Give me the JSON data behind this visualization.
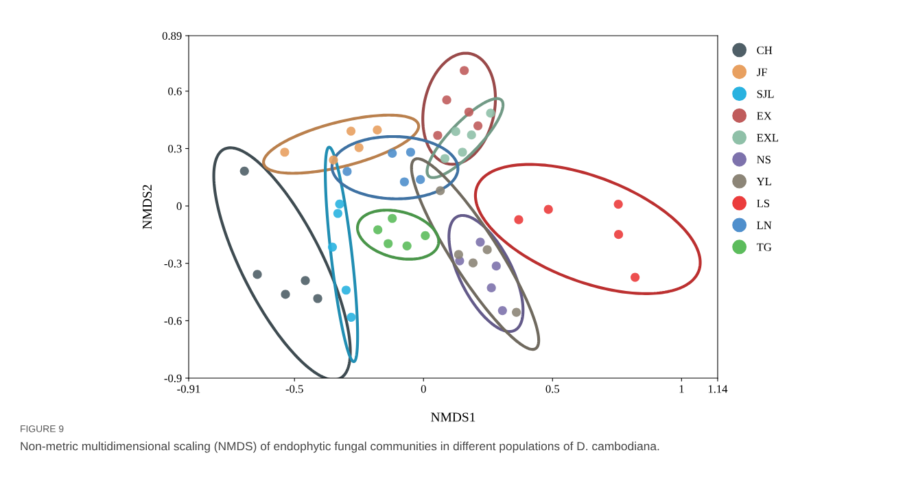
{
  "chart_data": {
    "type": "scatter",
    "xlabel": "NMDS1",
    "ylabel": "NMDS2",
    "xlim": [
      -0.91,
      1.14
    ],
    "ylim": [
      -0.9,
      0.89
    ],
    "xticks": [
      -0.91,
      -0.5,
      0,
      0.5,
      1,
      1.14
    ],
    "yticks": [
      -0.9,
      -0.6,
      -0.3,
      0,
      0.3,
      0.6,
      0.89
    ],
    "grid": false,
    "legend": "right",
    "marker": "circle",
    "series": [
      {
        "name": "CH",
        "color": "#4f5f67",
        "x": [
          -0.694,
          -0.644,
          -0.535,
          -0.458,
          -0.41
        ],
        "values": [
          0.182,
          -0.358,
          -0.462,
          -0.39,
          -0.484
        ]
      },
      {
        "name": "JF",
        "color": "#e8a060",
        "x": [
          -0.538,
          -0.349,
          -0.281,
          -0.25,
          -0.179
        ],
        "values": [
          0.281,
          0.24,
          0.391,
          0.305,
          0.397
        ]
      },
      {
        "name": "SJL",
        "color": "#29b2e0",
        "x": [
          -0.325,
          -0.332,
          -0.353,
          -0.3,
          -0.28
        ],
        "values": [
          0.01,
          -0.039,
          -0.215,
          -0.44,
          -0.582
        ]
      },
      {
        "name": "EX",
        "color": "#c05c5c",
        "x": [
          0.158,
          0.09,
          0.176,
          0.211,
          0.055
        ],
        "values": [
          0.708,
          0.554,
          0.491,
          0.419,
          0.369
        ]
      },
      {
        "name": "EXL",
        "color": "#8fc0a8",
        "x": [
          0.26,
          0.125,
          0.186,
          0.151,
          0.083
        ],
        "values": [
          0.485,
          0.389,
          0.371,
          0.281,
          0.248
        ]
      },
      {
        "name": "NS",
        "color": "#7d72ac",
        "x": [
          0.22,
          0.14,
          0.282,
          0.263,
          0.306
        ],
        "values": [
          -0.189,
          -0.287,
          -0.314,
          -0.428,
          -0.547
        ]
      },
      {
        "name": "YL",
        "color": "#8c8577",
        "x": [
          0.065,
          0.136,
          0.247,
          0.192,
          0.36
        ],
        "values": [
          0.08,
          -0.254,
          -0.229,
          -0.298,
          -0.556
        ]
      },
      {
        "name": "LS",
        "color": "#eb3c3c",
        "x": [
          0.369,
          0.484,
          0.755,
          0.756,
          0.82
        ],
        "values": [
          -0.072,
          -0.018,
          0.009,
          -0.149,
          -0.373
        ]
      },
      {
        "name": "LN",
        "color": "#4f8fcc",
        "x": [
          -0.296,
          -0.121,
          -0.05,
          -0.074,
          -0.012
        ],
        "values": [
          0.18,
          0.275,
          0.281,
          0.126,
          0.138
        ]
      },
      {
        "name": "TG",
        "color": "#5cbc5c",
        "x": [
          -0.121,
          -0.177,
          -0.137,
          -0.064,
          0.007
        ],
        "values": [
          -0.065,
          -0.125,
          -0.197,
          -0.209,
          -0.155
        ]
      }
    ],
    "annotations": [
      "FIGURE 9",
      "Non-metric multidimensional scaling (NMDS) of endophytic fungal communities in different populations of D. cambodiana."
    ]
  }
}
